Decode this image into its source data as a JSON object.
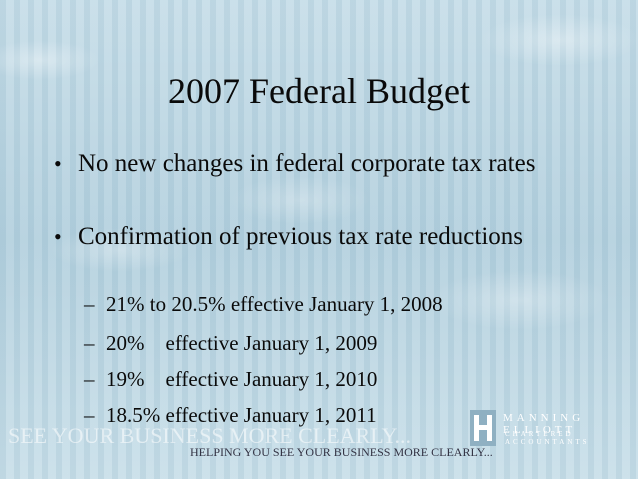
{
  "slide": {
    "title": "2007 Federal Budget",
    "bullets": [
      {
        "text": "No new changes in federal corporate tax rates"
      },
      {
        "text": "Confirmation of previous tax rate reductions",
        "sub_items": [
          "21% to 20.5% effective January 1, 2008",
          "20%    effective January 1, 2009",
          "19%    effective January 1, 2010",
          "18.5% effective January 1, 2011"
        ]
      }
    ]
  },
  "footer": {
    "watermark": "SEE YOUR BUSINESS MORE CLEARLY...",
    "tagline": "HELPING YOU SEE YOUR BUSINESS MORE CLEARLY...",
    "logo_name": "MANNING ELLIOTT",
    "logo_subtitle": "CHARTERED ACCOUNTANTS"
  }
}
